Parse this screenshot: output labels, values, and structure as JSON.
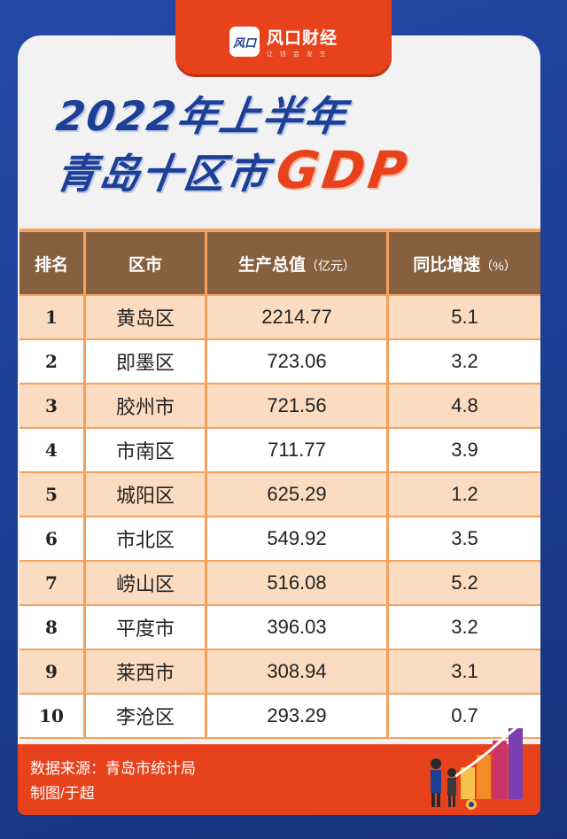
{
  "brand": {
    "logo_mark": "风口",
    "name": "风口财经",
    "slogan": "让 钱 会 发 生"
  },
  "title": {
    "line1": "2022年上半年",
    "line2_region": "青岛十区市",
    "line2_highlight": "GDP"
  },
  "table": {
    "headers": {
      "rank": "排名",
      "city": "区市",
      "gdp": "生产总值",
      "gdp_unit": "（亿元）",
      "rate": "同比增速",
      "rate_unit": "（%）"
    },
    "rows": [
      {
        "rank": "1",
        "city": "黄岛区",
        "gdp": "2214.77",
        "rate": "5.1"
      },
      {
        "rank": "2",
        "city": "即墨区",
        "gdp": "723.06",
        "rate": "3.2"
      },
      {
        "rank": "3",
        "city": "胶州市",
        "gdp": "721.56",
        "rate": "4.8"
      },
      {
        "rank": "4",
        "city": "市南区",
        "gdp": "711.77",
        "rate": "3.9"
      },
      {
        "rank": "5",
        "city": "城阳区",
        "gdp": "625.29",
        "rate": "1.2"
      },
      {
        "rank": "6",
        "city": "市北区",
        "gdp": "549.92",
        "rate": "3.5"
      },
      {
        "rank": "7",
        "city": "崂山区",
        "gdp": "516.08",
        "rate": "5.2"
      },
      {
        "rank": "8",
        "city": "平度市",
        "gdp": "396.03",
        "rate": "3.2"
      },
      {
        "rank": "9",
        "city": "莱西市",
        "gdp": "308.94",
        "rate": "3.1"
      },
      {
        "rank": "10",
        "city": "李沧区",
        "gdp": "293.29",
        "rate": "0.7"
      }
    ]
  },
  "footer": {
    "source": "数据来源：青岛市统计局",
    "author": "制图/于超"
  },
  "colors": {
    "background_blue": "#1d3f95",
    "accent_orange": "#e8421c",
    "header_brown": "#87613f",
    "row_peach": "#fcdcc0",
    "grid_orange": "#f5a05c"
  },
  "icons": [
    "business-people-growth-chart-illustration"
  ]
}
